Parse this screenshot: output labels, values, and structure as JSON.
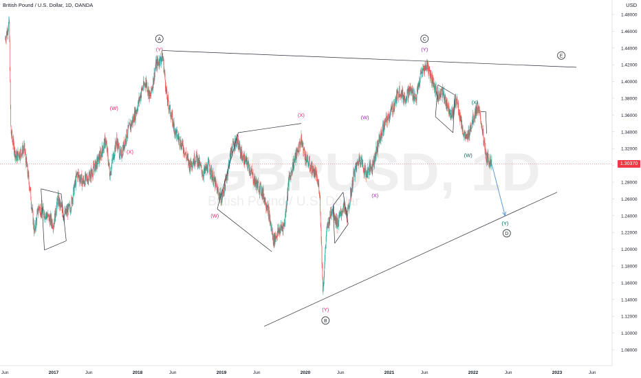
{
  "header": {
    "title": "British Pound / U.S. Dollar, 1D, OANDA",
    "currency": "USD"
  },
  "watermark": {
    "symbol": "GBPUSD, 1D",
    "name": "British Pound / U.S. Dollar"
  },
  "last_price": "1.30370",
  "colors": {
    "up": "#26a69a",
    "down": "#ef5350",
    "trendline": "#2a2e39",
    "projection": "#5b9bd5",
    "label_pink": "#e91e63",
    "label_purple": "#9c27b0",
    "label_teal": "#00695c",
    "price_badge": "#f23645"
  },
  "chart_data": {
    "type": "candlestick",
    "x_axis": {
      "ticks": [
        {
          "t": 2016.42,
          "label": "Jun"
        },
        {
          "t": 2017.0,
          "label": "2017"
        },
        {
          "t": 2017.42,
          "label": "Jun"
        },
        {
          "t": 2018.0,
          "label": "2018"
        },
        {
          "t": 2018.42,
          "label": "Jun"
        },
        {
          "t": 2019.0,
          "label": "2019"
        },
        {
          "t": 2019.42,
          "label": "Jun"
        },
        {
          "t": 2020.0,
          "label": "2020"
        },
        {
          "t": 2020.42,
          "label": "Jun"
        },
        {
          "t": 2021.0,
          "label": "2021"
        },
        {
          "t": 2021.42,
          "label": "Jun"
        },
        {
          "t": 2022.0,
          "label": "2022"
        },
        {
          "t": 2022.42,
          "label": "Jun"
        },
        {
          "t": 2023.0,
          "label": "2023"
        },
        {
          "t": 2023.42,
          "label": "Jun"
        }
      ]
    },
    "y_axis": {
      "range": [
        1.07,
        1.49
      ],
      "ticks": [
        "1.08000",
        "1.10000",
        "1.12000",
        "1.14000",
        "1.16000",
        "1.18000",
        "1.20000",
        "1.22000",
        "1.24000",
        "1.26000",
        "1.28000",
        "1.30000",
        "1.32000",
        "1.34000",
        "1.36000",
        "1.38000",
        "1.40000",
        "1.42000",
        "1.44000",
        "1.46000",
        "1.48000"
      ]
    },
    "price_path": [
      [
        2016.42,
        1.45
      ],
      [
        2016.47,
        1.47
      ],
      [
        2016.49,
        1.34
      ],
      [
        2016.55,
        1.31
      ],
      [
        2016.65,
        1.32
      ],
      [
        2016.72,
        1.27
      ],
      [
        2016.77,
        1.22
      ],
      [
        2016.82,
        1.25
      ],
      [
        2016.92,
        1.24
      ],
      [
        2017.0,
        1.23
      ],
      [
        2017.05,
        1.26
      ],
      [
        2017.12,
        1.24
      ],
      [
        2017.2,
        1.25
      ],
      [
        2017.28,
        1.29
      ],
      [
        2017.35,
        1.28
      ],
      [
        2017.45,
        1.29
      ],
      [
        2017.55,
        1.31
      ],
      [
        2017.62,
        1.33
      ],
      [
        2017.67,
        1.29
      ],
      [
        2017.75,
        1.33
      ],
      [
        2017.8,
        1.31
      ],
      [
        2017.88,
        1.34
      ],
      [
        2017.93,
        1.35
      ],
      [
        2018.0,
        1.37
      ],
      [
        2018.05,
        1.39
      ],
      [
        2018.1,
        1.4
      ],
      [
        2018.15,
        1.38
      ],
      [
        2018.22,
        1.42
      ],
      [
        2018.3,
        1.43
      ],
      [
        2018.35,
        1.38
      ],
      [
        2018.45,
        1.34
      ],
      [
        2018.55,
        1.32
      ],
      [
        2018.62,
        1.3
      ],
      [
        2018.7,
        1.31
      ],
      [
        2018.78,
        1.29
      ],
      [
        2018.85,
        1.3
      ],
      [
        2018.95,
        1.27
      ],
      [
        2019.0,
        1.26
      ],
      [
        2019.05,
        1.28
      ],
      [
        2019.12,
        1.32
      ],
      [
        2019.18,
        1.33
      ],
      [
        2019.25,
        1.31
      ],
      [
        2019.32,
        1.3
      ],
      [
        2019.4,
        1.28
      ],
      [
        2019.48,
        1.27
      ],
      [
        2019.55,
        1.25
      ],
      [
        2019.62,
        1.21
      ],
      [
        2019.67,
        1.22
      ],
      [
        2019.75,
        1.23
      ],
      [
        2019.8,
        1.28
      ],
      [
        2019.85,
        1.3
      ],
      [
        2019.95,
        1.33
      ],
      [
        2020.0,
        1.31
      ],
      [
        2020.05,
        1.3
      ],
      [
        2020.12,
        1.29
      ],
      [
        2020.17,
        1.27
      ],
      [
        2020.21,
        1.15
      ],
      [
        2020.25,
        1.22
      ],
      [
        2020.32,
        1.25
      ],
      [
        2020.38,
        1.23
      ],
      [
        2020.45,
        1.25
      ],
      [
        2020.5,
        1.24
      ],
      [
        2020.58,
        1.29
      ],
      [
        2020.65,
        1.31
      ],
      [
        2020.72,
        1.29
      ],
      [
        2020.8,
        1.3
      ],
      [
        2020.88,
        1.33
      ],
      [
        2020.95,
        1.35
      ],
      [
        2021.0,
        1.36
      ],
      [
        2021.05,
        1.37
      ],
      [
        2021.12,
        1.39
      ],
      [
        2021.18,
        1.38
      ],
      [
        2021.25,
        1.39
      ],
      [
        2021.32,
        1.38
      ],
      [
        2021.38,
        1.41
      ],
      [
        2021.45,
        1.42
      ],
      [
        2021.52,
        1.4
      ],
      [
        2021.58,
        1.38
      ],
      [
        2021.62,
        1.39
      ],
      [
        2021.7,
        1.37
      ],
      [
        2021.75,
        1.36
      ],
      [
        2021.8,
        1.38
      ],
      [
        2021.88,
        1.34
      ],
      [
        2021.92,
        1.33
      ],
      [
        2021.98,
        1.35
      ],
      [
        2022.05,
        1.37
      ],
      [
        2022.1,
        1.35
      ],
      [
        2022.15,
        1.31
      ],
      [
        2022.22,
        1.3037
      ]
    ],
    "trendlines": [
      {
        "name": "upper",
        "from": [
          2018.29,
          1.437
        ],
        "to": [
          2023.23,
          1.417
        ]
      },
      {
        "name": "lower",
        "from": [
          2019.51,
          1.108
        ],
        "to": [
          2023.0,
          1.268
        ]
      },
      {
        "name": "wave-abc-1",
        "from": [
          2016.85,
          1.272
        ],
        "to": [
          2017.09,
          1.266
        ]
      },
      {
        "name": "wave-abc-2",
        "from": [
          2016.85,
          1.272
        ],
        "to": [
          2016.89,
          1.199
        ]
      },
      {
        "name": "wave-abc-3",
        "from": [
          2016.89,
          1.199
        ],
        "to": [
          2017.15,
          1.21
        ]
      },
      {
        "name": "wave-abc-4",
        "from": [
          2017.09,
          1.266
        ],
        "to": [
          2017.15,
          1.21
        ]
      },
      {
        "name": "wave-xw-1",
        "from": [
          2018.95,
          1.248
        ],
        "to": [
          2019.6,
          1.197
        ]
      },
      {
        "name": "wave-xw-2",
        "from": [
          2018.95,
          1.248
        ],
        "to": [
          2019.2,
          1.339
        ]
      },
      {
        "name": "wave-xw-3",
        "from": [
          2019.2,
          1.339
        ],
        "to": [
          2019.95,
          1.35
        ]
      },
      {
        "name": "wave-tri-1",
        "from": [
          2020.33,
          1.252
        ],
        "to": [
          2020.45,
          1.268
        ]
      },
      {
        "name": "wave-tri-2",
        "from": [
          2020.33,
          1.252
        ],
        "to": [
          2020.35,
          1.207
        ]
      },
      {
        "name": "wave-tri-3",
        "from": [
          2020.35,
          1.207
        ],
        "to": [
          2020.51,
          1.23
        ]
      },
      {
        "name": "wave-tri-4",
        "from": [
          2020.45,
          1.268
        ],
        "to": [
          2020.51,
          1.23
        ]
      },
      {
        "name": "wave-top-1",
        "from": [
          2021.58,
          1.396
        ],
        "to": [
          2021.78,
          1.384
        ]
      },
      {
        "name": "wave-top-2",
        "from": [
          2021.58,
          1.396
        ],
        "to": [
          2021.55,
          1.358
        ]
      },
      {
        "name": "wave-top-3",
        "from": [
          2021.55,
          1.358
        ],
        "to": [
          2021.76,
          1.339
        ]
      },
      {
        "name": "wave-top-4",
        "from": [
          2021.78,
          1.384
        ],
        "to": [
          2021.76,
          1.339
        ]
      },
      {
        "name": "wave-recent-1",
        "from": [
          2022.09,
          1.364
        ],
        "to": [
          2022.15,
          1.364
        ]
      },
      {
        "name": "wave-recent-2",
        "from": [
          2022.15,
          1.364
        ],
        "to": [
          2022.16,
          1.338
        ]
      }
    ],
    "projection": {
      "from": [
        2022.22,
        1.302
      ],
      "to": [
        2022.38,
        1.24
      ]
    },
    "annotations": [
      {
        "text": "A",
        "circled": true,
        "t": 2018.26,
        "v": 1.451,
        "color": "#2a2e39"
      },
      {
        "text": "(Y)",
        "circled": false,
        "t": 2018.26,
        "v": 1.438,
        "color": "#e91e63"
      },
      {
        "text": "(W)",
        "circled": false,
        "t": 2017.72,
        "v": 1.368,
        "color": "#e91e63"
      },
      {
        "text": "(X)",
        "circled": false,
        "t": 2017.91,
        "v": 1.316,
        "color": "#e91e63"
      },
      {
        "text": "(W)",
        "circled": false,
        "t": 2018.92,
        "v": 1.24,
        "color": "#e91e63"
      },
      {
        "text": "(X)",
        "circled": false,
        "t": 2019.95,
        "v": 1.36,
        "color": "#e91e63"
      },
      {
        "text": "(Y)",
        "circled": false,
        "t": 2020.24,
        "v": 1.128,
        "color": "#e91e63"
      },
      {
        "text": "B",
        "circled": true,
        "t": 2020.24,
        "v": 1.115,
        "color": "#2a2e39"
      },
      {
        "text": "(W)",
        "circled": false,
        "t": 2020.71,
        "v": 1.357,
        "color": "#9c27b0"
      },
      {
        "text": "(X)",
        "circled": false,
        "t": 2020.83,
        "v": 1.264,
        "color": "#9c27b0"
      },
      {
        "text": "C",
        "circled": true,
        "t": 2021.42,
        "v": 1.451,
        "color": "#2a2e39"
      },
      {
        "text": "(Y)",
        "circled": false,
        "t": 2021.42,
        "v": 1.438,
        "color": "#9c27b0"
      },
      {
        "text": "(X)",
        "circled": false,
        "t": 2022.02,
        "v": 1.375,
        "color": "#00695c"
      },
      {
        "text": "(W)",
        "circled": false,
        "t": 2021.94,
        "v": 1.312,
        "color": "#00695c"
      },
      {
        "text": "E",
        "circled": true,
        "t": 2023.05,
        "v": 1.431,
        "color": "#2a2e39"
      },
      {
        "text": "(Y)",
        "circled": false,
        "t": 2022.38,
        "v": 1.231,
        "color": "#00695c"
      },
      {
        "text": "D",
        "circled": true,
        "t": 2022.4,
        "v": 1.219,
        "color": "#2a2e39"
      }
    ]
  }
}
